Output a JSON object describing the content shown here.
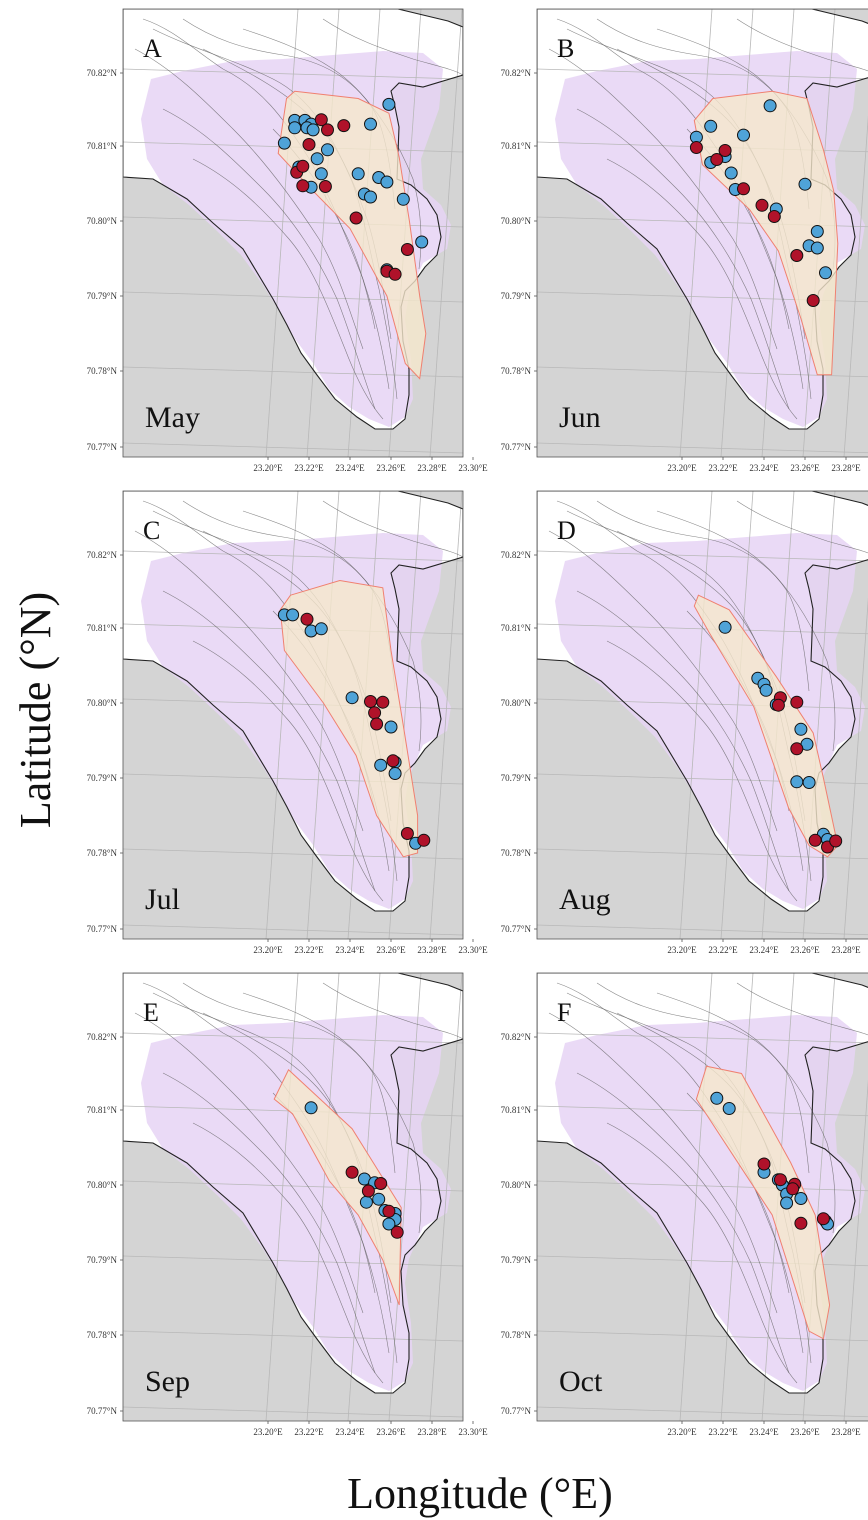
{
  "figure": {
    "xlabel": "Longitude (°E)",
    "ylabel": "Latitude (°N)"
  },
  "colors": {
    "land": "#d4d4d4",
    "water": "#ffffff",
    "contour": "#555555",
    "purple_area": "#e6d3f5",
    "hull_fill": "#f5e7cc",
    "hull_stroke": "#f08070",
    "blue_point": "#4fa3d8",
    "red_point": "#b0122a",
    "graticule": "#b8b8b8"
  },
  "axes": {
    "xticks": [
      "23.20°E",
      "23.22°E",
      "23.24°E",
      "23.26°E",
      "23.28°E",
      "23.30°E"
    ],
    "yticks": [
      "70.82°N",
      "70.81°N",
      "70.80°N",
      "70.79°N",
      "70.78°N",
      "70.77°N"
    ]
  },
  "chart_data": [
    {
      "type": "scatter",
      "panel": "A",
      "month": "May",
      "xlim": [
        23.195,
        23.33
      ],
      "ylim": [
        70.7695,
        70.8285
      ],
      "xlabel": "",
      "ylabel": "",
      "hull": [
        [
          23.213,
          70.8175
        ],
        [
          23.244,
          70.8165
        ],
        [
          23.259,
          70.8145
        ],
        [
          23.264,
          70.8085
        ],
        [
          23.269,
          70.8
        ],
        [
          23.274,
          70.79
        ],
        [
          23.277,
          70.785
        ],
        [
          23.274,
          70.779
        ],
        [
          23.267,
          70.781
        ],
        [
          23.258,
          70.79
        ],
        [
          23.24,
          70.799
        ],
        [
          23.222,
          70.804
        ],
        [
          23.205,
          70.809
        ],
        [
          23.209,
          70.8165
        ]
      ],
      "series": [
        {
          "name": "",
          "color": "blue",
          "x": [
            23.213,
            23.218,
            23.221,
            23.219,
            23.222,
            23.213,
            23.208,
            23.224,
            23.229,
            23.226,
            23.221,
            23.215,
            23.244,
            23.25,
            23.259,
            23.254,
            23.258,
            23.247,
            23.25,
            23.266,
            23.275,
            23.258
          ],
          "y": [
            70.8135,
            70.8135,
            70.813,
            70.8125,
            70.8122,
            70.8125,
            70.8104,
            70.8083,
            70.8095,
            70.8063,
            70.8045,
            70.8072,
            70.8063,
            70.813,
            70.8157,
            70.8058,
            70.8052,
            70.8036,
            70.8032,
            70.8029,
            70.7972,
            70.7935
          ]
        },
        {
          "name": "",
          "color": "red",
          "x": [
            23.226,
            23.229,
            23.237,
            23.22,
            23.214,
            23.217,
            23.217,
            23.228,
            23.243,
            23.258,
            23.268,
            23.262
          ],
          "y": [
            70.8136,
            70.8122,
            70.8128,
            70.8102,
            70.8065,
            70.8073,
            70.8047,
            70.8046,
            70.8004,
            70.7933,
            70.7962,
            70.7929
          ]
        }
      ]
    },
    {
      "type": "scatter",
      "panel": "B",
      "month": "Jun",
      "xlim": [
        23.195,
        23.33
      ],
      "ylim": [
        70.7695,
        70.8285
      ],
      "xlabel": "",
      "ylabel": "",
      "hull": [
        [
          23.215,
          70.8165
        ],
        [
          23.244,
          70.8175
        ],
        [
          23.261,
          70.8165
        ],
        [
          23.269,
          70.8095
        ],
        [
          23.274,
          70.804
        ],
        [
          23.276,
          70.797
        ],
        [
          23.273,
          70.7795
        ],
        [
          23.266,
          70.7795
        ],
        [
          23.258,
          70.787
        ],
        [
          23.247,
          70.796
        ],
        [
          23.233,
          70.8015
        ],
        [
          23.21,
          70.8075
        ],
        [
          23.206,
          70.8135
        ]
      ],
      "series": [
        {
          "name": "",
          "color": "blue",
          "x": [
            23.207,
            23.214,
            23.23,
            23.243,
            23.221,
            23.214,
            23.224,
            23.226,
            23.26,
            23.246,
            23.266,
            23.262,
            23.266,
            23.27
          ],
          "y": [
            70.8112,
            70.8127,
            70.8115,
            70.8155,
            70.8086,
            70.8078,
            70.8064,
            70.8042,
            70.8049,
            70.8016,
            70.7986,
            70.7967,
            70.7964,
            70.7931
          ]
        },
        {
          "name": "",
          "color": "red",
          "x": [
            23.207,
            23.221,
            23.217,
            23.23,
            23.239,
            23.245,
            23.256,
            23.264
          ],
          "y": [
            70.8098,
            70.8094,
            70.8082,
            70.8043,
            70.8021,
            70.8006,
            70.7954,
            70.7894
          ]
        }
      ]
    },
    {
      "type": "scatter",
      "panel": "C",
      "month": "Jul",
      "xlim": [
        23.195,
        23.33
      ],
      "ylim": [
        70.7695,
        70.8285
      ],
      "xlabel": "",
      "ylabel": "",
      "hull": [
        [
          23.211,
          70.8145
        ],
        [
          23.235,
          70.8165
        ],
        [
          23.256,
          70.8155
        ],
        [
          23.26,
          70.807
        ],
        [
          23.266,
          70.797
        ],
        [
          23.273,
          70.785
        ],
        [
          23.273,
          70.78
        ],
        [
          23.266,
          70.7795
        ],
        [
          23.253,
          70.785
        ],
        [
          23.243,
          70.793
        ],
        [
          23.227,
          70.8
        ],
        [
          23.208,
          70.807
        ],
        [
          23.206,
          70.8125
        ]
      ],
      "series": [
        {
          "name": "",
          "color": "blue",
          "x": [
            23.208,
            23.212,
            23.221,
            23.226,
            23.241,
            23.26,
            23.262,
            23.262,
            23.255,
            23.272
          ],
          "y": [
            70.8118,
            70.8118,
            70.8096,
            70.8099,
            70.8007,
            70.7968,
            70.7921,
            70.7906,
            70.7917,
            70.7813
          ]
        },
        {
          "name": "",
          "color": "red",
          "x": [
            23.219,
            23.25,
            23.252,
            23.253,
            23.256,
            23.261,
            23.268,
            23.276
          ],
          "y": [
            70.8112,
            70.8002,
            70.7987,
            70.7972,
            70.8001,
            70.7923,
            70.7826,
            70.7817
          ]
        }
      ]
    },
    {
      "type": "scatter",
      "panel": "D",
      "month": "Aug",
      "xlim": [
        23.195,
        23.33
      ],
      "ylim": [
        70.7695,
        70.8285
      ],
      "xlabel": "",
      "ylabel": "",
      "hull": [
        [
          23.208,
          70.8145
        ],
        [
          23.223,
          70.8125
        ],
        [
          23.246,
          70.8035
        ],
        [
          23.264,
          70.796
        ],
        [
          23.269,
          70.79
        ],
        [
          23.276,
          70.781
        ],
        [
          23.271,
          70.7795
        ],
        [
          23.262,
          70.781
        ],
        [
          23.252,
          70.786
        ],
        [
          23.235,
          70.7995
        ],
        [
          23.213,
          70.8095
        ],
        [
          23.206,
          70.813
        ]
      ],
      "series": [
        {
          "name": "",
          "color": "blue",
          "x": [
            23.221,
            23.237,
            23.24,
            23.241,
            23.246,
            23.258,
            23.261,
            23.256,
            23.262,
            23.269,
            23.271
          ],
          "y": [
            70.8101,
            70.8033,
            70.8025,
            70.8017,
            70.7998,
            70.7965,
            70.7945,
            70.7895,
            70.7894,
            70.7825,
            70.7818
          ]
        },
        {
          "name": "",
          "color": "red",
          "x": [
            23.248,
            23.247,
            23.256,
            23.256,
            23.265,
            23.271,
            23.275
          ],
          "y": [
            70.8007,
            70.7997,
            70.8001,
            70.7939,
            70.7817,
            70.7808,
            70.7816
          ]
        }
      ]
    },
    {
      "type": "scatter",
      "panel": "E",
      "month": "Sep",
      "xlim": [
        23.195,
        23.33
      ],
      "ylim": [
        70.7695,
        70.8285
      ],
      "xlabel": "",
      "ylabel": "",
      "hull": [
        [
          23.21,
          70.8155
        ],
        [
          23.241,
          70.8075
        ],
        [
          23.265,
          70.797
        ],
        [
          23.264,
          70.784
        ],
        [
          23.256,
          70.79
        ],
        [
          23.244,
          70.796
        ],
        [
          23.23,
          70.8005
        ],
        [
          23.212,
          70.8095
        ],
        [
          23.203,
          70.8115
        ]
      ],
      "series": [
        {
          "name": "",
          "color": "blue",
          "x": [
            23.221,
            23.247,
            23.252,
            23.254,
            23.248,
            23.257,
            23.262,
            23.262,
            23.259
          ],
          "y": [
            70.8103,
            70.8008,
            70.8003,
            70.7981,
            70.7977,
            70.7966,
            70.7962,
            70.7954,
            70.7948
          ]
        },
        {
          "name": "",
          "color": "red",
          "x": [
            23.241,
            23.255,
            23.249,
            23.259,
            23.263
          ],
          "y": [
            70.8017,
            70.8002,
            70.7992,
            70.7965,
            70.7937
          ]
        }
      ]
    },
    {
      "type": "scatter",
      "panel": "F",
      "month": "Oct",
      "xlim": [
        23.195,
        23.33
      ],
      "ylim": [
        70.7695,
        70.8285
      ],
      "xlabel": "",
      "ylabel": "",
      "hull": [
        [
          23.212,
          70.816
        ],
        [
          23.229,
          70.815
        ],
        [
          23.253,
          70.803
        ],
        [
          23.265,
          70.796
        ],
        [
          23.272,
          70.784
        ],
        [
          23.269,
          70.7795
        ],
        [
          23.262,
          70.7805
        ],
        [
          23.244,
          70.796
        ],
        [
          23.226,
          70.8035
        ],
        [
          23.207,
          70.8115
        ]
      ],
      "series": [
        {
          "name": "",
          "color": "blue",
          "x": [
            23.217,
            23.223,
            23.24,
            23.247,
            23.249,
            23.251,
            23.251,
            23.258,
            23.27,
            23.271
          ],
          "y": [
            70.8116,
            70.8102,
            70.8017,
            70.8007,
            70.8,
            70.7988,
            70.7976,
            70.7982,
            70.7952,
            70.7948
          ]
        },
        {
          "name": "",
          "color": "red",
          "x": [
            23.24,
            23.248,
            23.255,
            23.254,
            23.269,
            23.258
          ],
          "y": [
            70.8028,
            70.8007,
            70.8001,
            70.7995,
            70.7955,
            70.7949
          ]
        }
      ]
    }
  ]
}
